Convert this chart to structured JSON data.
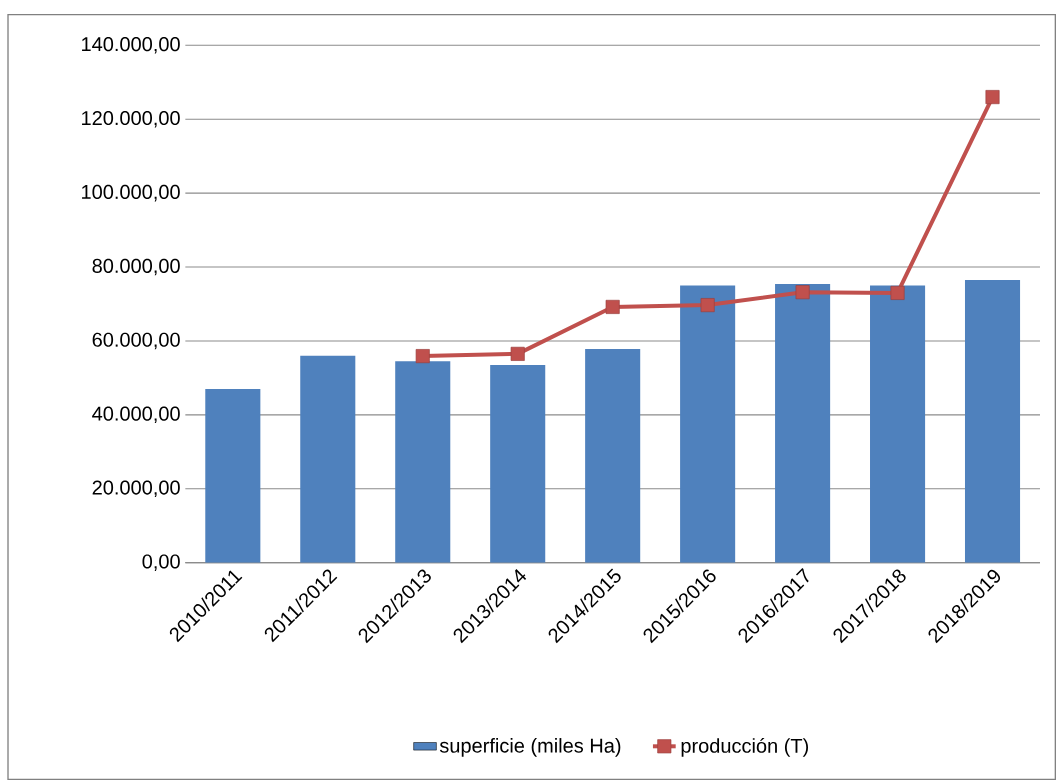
{
  "chart_data": {
    "type": "bar",
    "categories": [
      "2010/2011",
      "2011/2012",
      "2012/2013",
      "2013/2014",
      "2014/2015",
      "2015/2016",
      "2016/2017",
      "2017/2018",
      "2018/2019"
    ],
    "series": [
      {
        "name": "superficie (miles Ha)",
        "color": "#4f81bd",
        "values": [
          47000,
          56000,
          54500,
          53500,
          57800,
          75000,
          75400,
          75000,
          76500
        ]
      },
      {
        "name": "producción (T)",
        "type": "line",
        "color": "#c0504d",
        "marker": "square",
        "values": [
          null,
          null,
          55900,
          56500,
          69200,
          69700,
          73200,
          73000,
          126000
        ]
      }
    ],
    "ylim": [
      0,
      140000
    ],
    "yticks": [
      {
        "value": 0,
        "label": "0,00"
      },
      {
        "value": 20000,
        "label": "20.000,00"
      },
      {
        "value": 40000,
        "label": "40.000,00"
      },
      {
        "value": 60000,
        "label": "60.000,00"
      },
      {
        "value": 80000,
        "label": "80.000,00"
      },
      {
        "value": 100000,
        "label": "100.000,00"
      },
      {
        "value": 120000,
        "label": "120.000,00"
      },
      {
        "value": 140000,
        "label": "140.000,00"
      }
    ],
    "grid": "y",
    "legend": "bottom"
  }
}
